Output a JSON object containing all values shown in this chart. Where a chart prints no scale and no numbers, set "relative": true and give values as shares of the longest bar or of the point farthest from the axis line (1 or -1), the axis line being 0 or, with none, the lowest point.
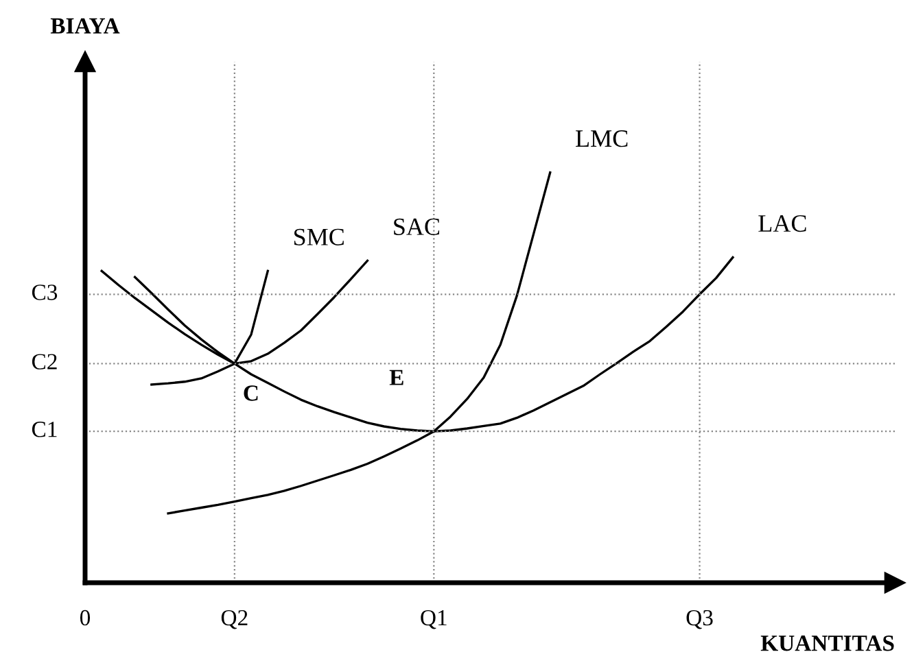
{
  "chart_data": {
    "type": "line",
    "xlabel": "KUANTITAS",
    "relative": true,
    "categories": [
      "0",
      null,
      null,
      null,
      null,
      null,
      null,
      null,
      null,
      "Q2",
      null,
      null,
      null,
      null,
      null,
      null,
      null,
      null,
      null,
      null,
      null,
      "Q1",
      null,
      null,
      null,
      null,
      null,
      null,
      null,
      null,
      null,
      null,
      null,
      null,
      null,
      null,
      null,
      "Q3",
      null,
      null
    ],
    "grid": "x",
    "legend": false,
    "line_style": "solid",
    "marker": "none",
    "series": [
      {
        "name": "LAC",
        "color": "#000000",
        "values": [
          null,
          0.76,
          0.726,
          0.694,
          0.664,
          0.634,
          0.606,
          0.58,
          0.556,
          0.534,
          0.508,
          0.487,
          0.466,
          0.446,
          0.43,
          0.416,
          0.403,
          0.39,
          0.381,
          0.375,
          0.371,
          0.369,
          0.371,
          0.376,
          0.382,
          0.388,
          0.402,
          0.42,
          0.44,
          0.46,
          0.48,
          0.508,
          0.535,
          0.563,
          0.589,
          0.624,
          0.661,
          0.703,
          0.743,
          0.793
        ]
      },
      {
        "name": "LMC",
        "color": "#000000",
        "values": [
          null,
          null,
          null,
          null,
          null,
          0.169,
          0.176,
          0.183,
          0.19,
          0.198,
          0.206,
          0.214,
          0.224,
          0.236,
          0.249,
          0.262,
          0.275,
          0.29,
          0.308,
          0.327,
          0.347,
          0.369,
          0.405,
          0.448,
          0.5,
          0.58,
          0.7,
          0.85,
          1.0,
          null,
          null,
          null,
          null,
          null,
          null,
          null,
          null,
          null,
          null,
          null
        ]
      },
      {
        "name": "SAC",
        "color": "#000000",
        "values": [
          null,
          null,
          null,
          0.745,
          0.706,
          0.666,
          0.627,
          0.593,
          0.562,
          0.534,
          0.54,
          0.558,
          0.585,
          0.615,
          0.655,
          0.696,
          0.74,
          0.785,
          null,
          null,
          null,
          null,
          null,
          null,
          null,
          null,
          null,
          null,
          null,
          null,
          null,
          null,
          null,
          null,
          null,
          null,
          null,
          null,
          null,
          null
        ]
      },
      {
        "name": "SMC",
        "color": "#000000",
        "values": [
          null,
          null,
          null,
          null,
          0.483,
          0.486,
          0.49,
          0.498,
          0.515,
          0.534,
          0.605,
          0.76,
          null,
          null,
          null,
          null,
          null,
          null,
          null,
          null,
          null,
          null,
          null,
          null,
          null,
          null,
          null,
          null,
          null,
          null,
          null,
          null,
          null,
          null,
          null,
          null,
          null,
          null,
          null,
          null
        ]
      }
    ],
    "ref_lines": [
      {
        "axis": "y",
        "value": 0.369,
        "label": "C1",
        "line_style": "dotted",
        "color": "#888888"
      },
      {
        "axis": "y",
        "value": 0.534,
        "label": "C2",
        "line_style": "dotted",
        "color": "#888888"
      },
      {
        "axis": "y",
        "value": 0.703,
        "label": "C3",
        "line_style": "dotted",
        "color": "#888888"
      }
    ],
    "annotations": [
      "E",
      "C",
      "BIAYA"
    ]
  }
}
